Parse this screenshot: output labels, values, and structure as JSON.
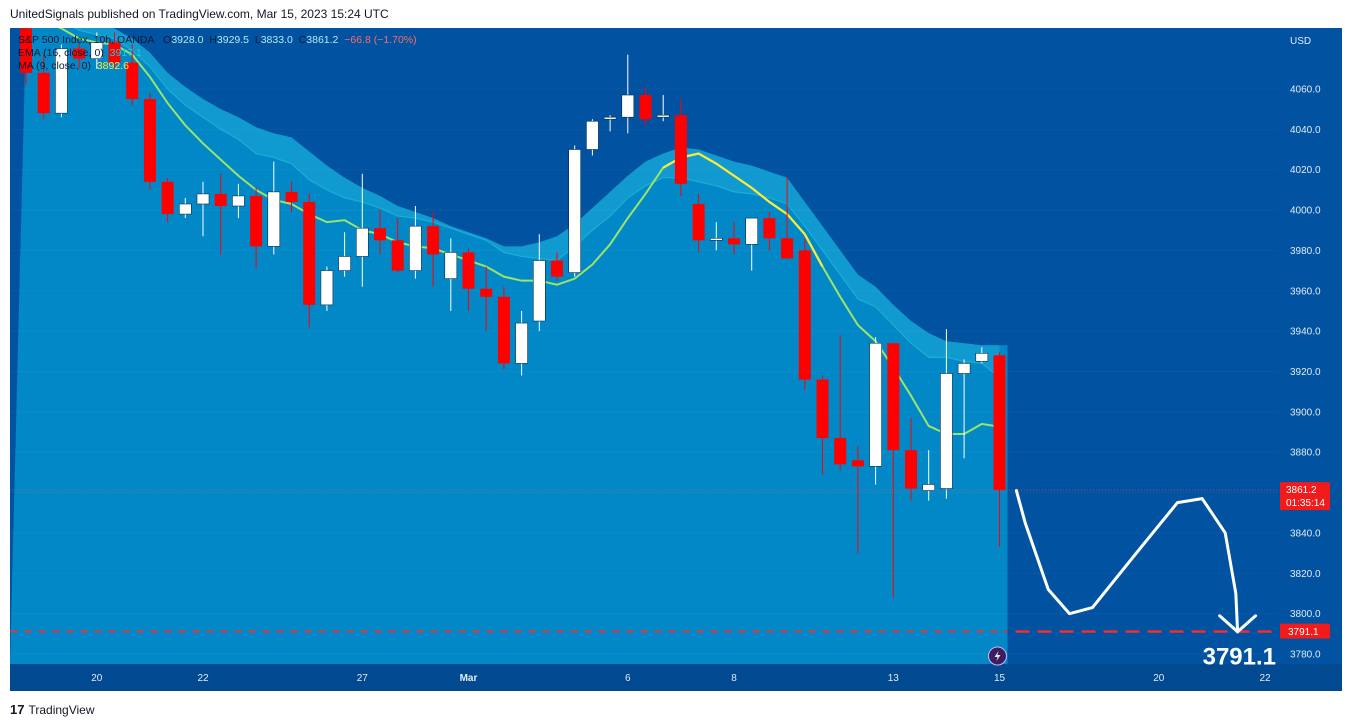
{
  "header": {
    "published_text": "UnitedSignals published on TradingView.com, Mar 15, 2023 15:24 UTC"
  },
  "footer": {
    "logo_mark": "17",
    "brand": "TradingView"
  },
  "legend": {
    "symbol": "S&P 500 Index, 10h, OANDA",
    "open_label": "O",
    "open": "3928.0",
    "high_label": "H",
    "high": "3929.5",
    "low_label": "L",
    "low": "3833.0",
    "close_label": "C",
    "close": "3861.2",
    "change": "−66.8 (−1.70%)",
    "ema_label": "EMA (16, close, 0)",
    "ema_value": "3917.1",
    "ma_label": "MA (9, close, 0)",
    "ma_value": "3892.6"
  },
  "colors": {
    "background": "#0152a0",
    "band_fill": "#0288c7",
    "band_upper": "#2aa8d8",
    "ema_line": "#26c6da",
    "ma_line": "#fdea3b",
    "up_candle": "#ffffff",
    "down_candle": "#ff0000",
    "target_line": "#ff2a2a",
    "axis_text": "#e1ecf7"
  },
  "chart_data": {
    "type": "candlestick",
    "currency": "USD",
    "ylim": [
      3770,
      4085
    ],
    "y_ticks": [
      "3780.0",
      "3800.0",
      "3820.0",
      "3840.0",
      "3860.0",
      "3880.0",
      "3900.0",
      "3920.0",
      "3940.0",
      "3960.0",
      "3980.0",
      "4000.0",
      "4020.0",
      "4040.0",
      "4060.0"
    ],
    "x_ticks": [
      {
        "label": "20",
        "bar": 4
      },
      {
        "label": "22",
        "bar": 10
      },
      {
        "label": "27",
        "bar": 19
      },
      {
        "label": "Mar",
        "bar": 25
      },
      {
        "label": "6",
        "bar": 34
      },
      {
        "label": "8",
        "bar": 40
      },
      {
        "label": "13",
        "bar": 49
      },
      {
        "label": "15",
        "bar": 55
      },
      {
        "label": "20",
        "bar": 64
      },
      {
        "label": "22",
        "bar": 70
      }
    ],
    "candles": [
      {
        "o": 4090,
        "h": 4092,
        "l": 4062,
        "c": 4068
      },
      {
        "o": 4068,
        "h": 4077,
        "l": 4045,
        "c": 4048
      },
      {
        "o": 4048,
        "h": 4082,
        "l": 4046,
        "c": 4080
      },
      {
        "o": 4080,
        "h": 4083,
        "l": 4070,
        "c": 4075
      },
      {
        "o": 4075,
        "h": 4088,
        "l": 4070,
        "c": 4083
      },
      {
        "o": 4083,
        "h": 4088,
        "l": 4070,
        "c": 4073
      },
      {
        "o": 4073,
        "h": 4082,
        "l": 4052,
        "c": 4055
      },
      {
        "o": 4055,
        "h": 4058,
        "l": 4010,
        "c": 4014
      },
      {
        "o": 4014,
        "h": 4016,
        "l": 3994,
        "c": 3998
      },
      {
        "o": 3998,
        "h": 4006,
        "l": 3996,
        "c": 4003
      },
      {
        "o": 4003,
        "h": 4014,
        "l": 3987,
        "c": 4008
      },
      {
        "o": 4008,
        "h": 4018,
        "l": 3978,
        "c": 4002
      },
      {
        "o": 4002,
        "h": 4013,
        "l": 3996,
        "c": 4007
      },
      {
        "o": 4007,
        "h": 4011,
        "l": 3971,
        "c": 3982
      },
      {
        "o": 3982,
        "h": 4024,
        "l": 3978,
        "c": 4009
      },
      {
        "o": 4009,
        "h": 4014,
        "l": 3999,
        "c": 4004
      },
      {
        "o": 4004,
        "h": 4008,
        "l": 3942,
        "c": 3953
      },
      {
        "o": 3953,
        "h": 3972,
        "l": 3950,
        "c": 3970
      },
      {
        "o": 3970,
        "h": 3989,
        "l": 3967,
        "c": 3977
      },
      {
        "o": 3977,
        "h": 4018,
        "l": 3962,
        "c": 3991
      },
      {
        "o": 3991,
        "h": 4000,
        "l": 3978,
        "c": 3985
      },
      {
        "o": 3985,
        "h": 3996,
        "l": 3969,
        "c": 3970
      },
      {
        "o": 3970,
        "h": 4002,
        "l": 3966,
        "c": 3992
      },
      {
        "o": 3992,
        "h": 3999,
        "l": 3962,
        "c": 3978
      },
      {
        "o": 3966,
        "h": 3986,
        "l": 3950,
        "c": 3979
      },
      {
        "o": 3979,
        "h": 3981,
        "l": 3950,
        "c": 3961
      },
      {
        "o": 3961,
        "h": 3972,
        "l": 3940,
        "c": 3957
      },
      {
        "o": 3957,
        "h": 3962,
        "l": 3921,
        "c": 3924
      },
      {
        "o": 3924,
        "h": 3950,
        "l": 3918,
        "c": 3944
      },
      {
        "o": 3945,
        "h": 3988,
        "l": 3940,
        "c": 3975
      },
      {
        "o": 3975,
        "h": 3979,
        "l": 3965,
        "c": 3967
      },
      {
        "o": 3969,
        "h": 4032,
        "l": 3967,
        "c": 4030
      },
      {
        "o": 4030,
        "h": 4045,
        "l": 4027,
        "c": 4044
      },
      {
        "o": 4045,
        "h": 4047,
        "l": 4039,
        "c": 4046
      },
      {
        "o": 4046,
        "h": 4077,
        "l": 4038,
        "c": 4057
      },
      {
        "o": 4057,
        "h": 4061,
        "l": 4042,
        "c": 4045
      },
      {
        "o": 4046,
        "h": 4057,
        "l": 4044,
        "c": 4047
      },
      {
        "o": 4047,
        "h": 4055,
        "l": 4007,
        "c": 4013
      },
      {
        "o": 4003,
        "h": 4008,
        "l": 3979,
        "c": 3985
      },
      {
        "o": 3985,
        "h": 3994,
        "l": 3980,
        "c": 3986
      },
      {
        "o": 3986,
        "h": 3994,
        "l": 3978,
        "c": 3983
      },
      {
        "o": 3983,
        "h": 3995,
        "l": 3970,
        "c": 3996
      },
      {
        "o": 3996,
        "h": 3999,
        "l": 3980,
        "c": 3986
      },
      {
        "o": 3986,
        "h": 4016,
        "l": 3978,
        "c": 3976
      },
      {
        "o": 3980,
        "h": 3986,
        "l": 3911,
        "c": 3916
      },
      {
        "o": 3916,
        "h": 3918,
        "l": 3869,
        "c": 3887
      },
      {
        "o": 3887,
        "h": 3938,
        "l": 3871,
        "c": 3874
      },
      {
        "o": 3876,
        "h": 3883,
        "l": 3830,
        "c": 3873
      },
      {
        "o": 3873,
        "h": 3937,
        "l": 3864,
        "c": 3934
      },
      {
        "o": 3934,
        "h": 3934,
        "l": 3808,
        "c": 3881
      },
      {
        "o": 3881,
        "h": 3897,
        "l": 3856,
        "c": 3862
      },
      {
        "o": 3861,
        "h": 3881,
        "l": 3856,
        "c": 3864
      },
      {
        "o": 3862,
        "h": 3941,
        "l": 3857,
        "c": 3919
      },
      {
        "o": 3919,
        "h": 3926,
        "l": 3877,
        "c": 3924
      },
      {
        "o": 3925,
        "h": 3932,
        "l": 3924,
        "c": 3929
      },
      {
        "o": 3928,
        "h": 3929.5,
        "l": 3833,
        "c": 3861.2
      }
    ],
    "ema_16": [
      4110,
      4100,
      4094,
      4089,
      4087,
      4085,
      4079,
      4071,
      4060,
      4052,
      4046,
      4040,
      4035,
      4028,
      4026,
      4023,
      4015,
      4010,
      4006,
      4004,
      4001,
      3997,
      3996,
      3994,
      3991,
      3988,
      3985,
      3979,
      3977,
      3976,
      3975,
      3982,
      3990,
      3997,
      4006,
      4012,
      4016,
      4016,
      4014,
      4012,
      4009,
      4008,
      4006,
      4003,
      3992,
      3980,
      3968,
      3956,
      3952,
      3943,
      3934,
      3927,
      3927,
      3925,
      3924,
      3917.1
    ],
    "ma_9": [
      4100,
      4094,
      4090,
      4085,
      4083,
      4082,
      4077,
      4066,
      4053,
      4042,
      4033,
      4025,
      4017,
      4010,
      4005,
      4003,
      3998,
      3994,
      3995,
      3990,
      3988,
      3984,
      3982,
      3981,
      3978,
      3975,
      3972,
      3967,
      3965,
      3965,
      3963,
      3966,
      3973,
      3983,
      3996,
      4008,
      4021,
      4026,
      4028,
      4023,
      4017,
      4011,
      4004,
      3998,
      3988,
      3972,
      3957,
      3943,
      3935,
      3922,
      3908,
      3893,
      3889,
      3889,
      3894,
      3892.6
    ],
    "band_upper": [
      4112,
      4105,
      4100,
      4094,
      4092,
      4090,
      4085,
      4078,
      4068,
      4061,
      4055,
      4050,
      4046,
      4041,
      4038,
      4036,
      4029,
      4022,
      4016,
      4011,
      4007,
      4002,
      3999,
      3996,
      3992,
      3989,
      3986,
      3982,
      3982,
      3984,
      3987,
      3993,
      4001,
      4009,
      4017,
      4024,
      4028,
      4031,
      4030,
      4027,
      4024,
      4022,
      4019,
      4016,
      4004,
      3992,
      3980,
      3968,
      3962,
      3953,
      3945,
      3939,
      3935,
      3934,
      3933,
      3933
    ],
    "last_price": {
      "value": 3861.2,
      "label": "3861.2",
      "countdown": "01:35:14"
    },
    "target": {
      "value": 3791.1,
      "label": "3791.1",
      "big_label": "3791.1"
    },
    "projection_path": [
      [
        0.5,
        3861
      ],
      [
        1,
        3845
      ],
      [
        2.3,
        3812
      ],
      [
        3.5,
        3800
      ],
      [
        4.8,
        3803
      ],
      [
        7,
        3827
      ],
      [
        9.6,
        3855
      ],
      [
        11,
        3857
      ],
      [
        12.3,
        3840
      ],
      [
        12.9,
        3810
      ],
      [
        13,
        3791
      ]
    ]
  }
}
